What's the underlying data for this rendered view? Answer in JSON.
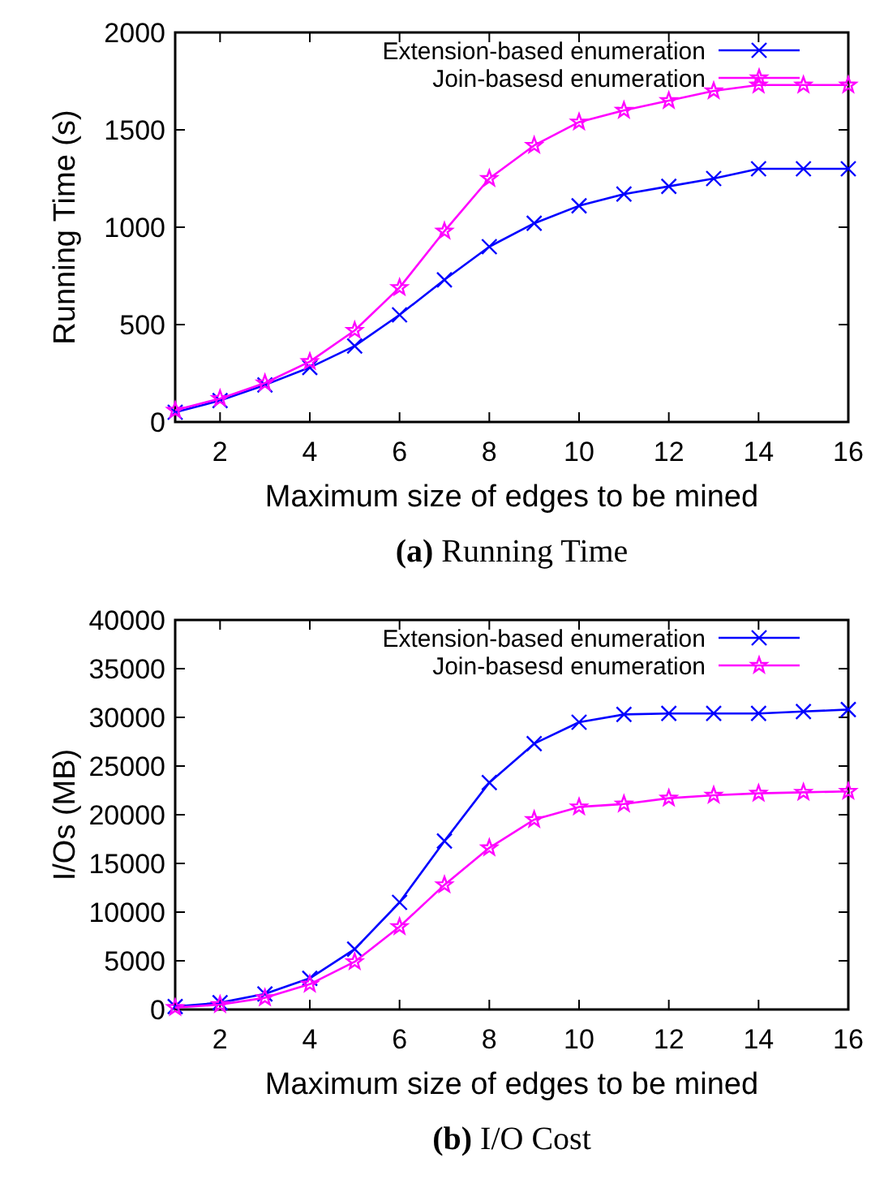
{
  "chart_data": [
    {
      "type": "line",
      "title": "(a) Running Time",
      "xlabel": "Maximum size of edges to be mined",
      "ylabel": "Running Time (s)",
      "x": [
        1,
        2,
        3,
        4,
        5,
        6,
        7,
        8,
        9,
        10,
        11,
        12,
        13,
        14,
        15,
        16
      ],
      "xlim": [
        1,
        16
      ],
      "xticks": [
        2,
        4,
        6,
        8,
        10,
        12,
        14,
        16
      ],
      "ylim": [
        0,
        2000
      ],
      "yticks": [
        0,
        500,
        1000,
        1500,
        2000
      ],
      "grid": false,
      "legend": "top right",
      "line_style": "solid",
      "series": [
        {
          "name": "Extension-based enumeration",
          "color": "#0000ff",
          "marker": "cross",
          "values": [
            50,
            110,
            190,
            280,
            390,
            550,
            730,
            900,
            1020,
            1110,
            1170,
            1210,
            1250,
            1300,
            1300,
            1300
          ]
        },
        {
          "name": "Join-basesd enumeration",
          "color": "#ff00ff",
          "marker": "star",
          "values": [
            60,
            120,
            200,
            310,
            470,
            690,
            980,
            1250,
            1420,
            1540,
            1600,
            1650,
            1700,
            1730,
            1730,
            1730
          ]
        }
      ]
    },
    {
      "type": "line",
      "title": "(b) I/O Cost",
      "xlabel": "Maximum size of edges to be mined",
      "ylabel": "I/Os (MB)",
      "x": [
        1,
        2,
        3,
        4,
        5,
        6,
        7,
        8,
        9,
        10,
        11,
        12,
        13,
        14,
        15,
        16
      ],
      "xlim": [
        1,
        16
      ],
      "xticks": [
        2,
        4,
        6,
        8,
        10,
        12,
        14,
        16
      ],
      "ylim": [
        0,
        40000
      ],
      "yticks": [
        0,
        5000,
        10000,
        15000,
        20000,
        25000,
        30000,
        35000,
        40000
      ],
      "grid": false,
      "legend": "top right",
      "line_style": "solid",
      "series": [
        {
          "name": "Extension-based enumeration",
          "color": "#0000ff",
          "marker": "cross",
          "values": [
            300,
            700,
            1600,
            3200,
            6200,
            11000,
            17300,
            23300,
            27300,
            29500,
            30300,
            30400,
            30400,
            30400,
            30600,
            30800
          ]
        },
        {
          "name": "Join-basesd enumeration",
          "color": "#ff00ff",
          "marker": "star",
          "values": [
            200,
            500,
            1200,
            2600,
            4900,
            8500,
            12800,
            16600,
            19500,
            20800,
            21100,
            21700,
            22000,
            22200,
            22300,
            22400
          ]
        }
      ]
    }
  ]
}
